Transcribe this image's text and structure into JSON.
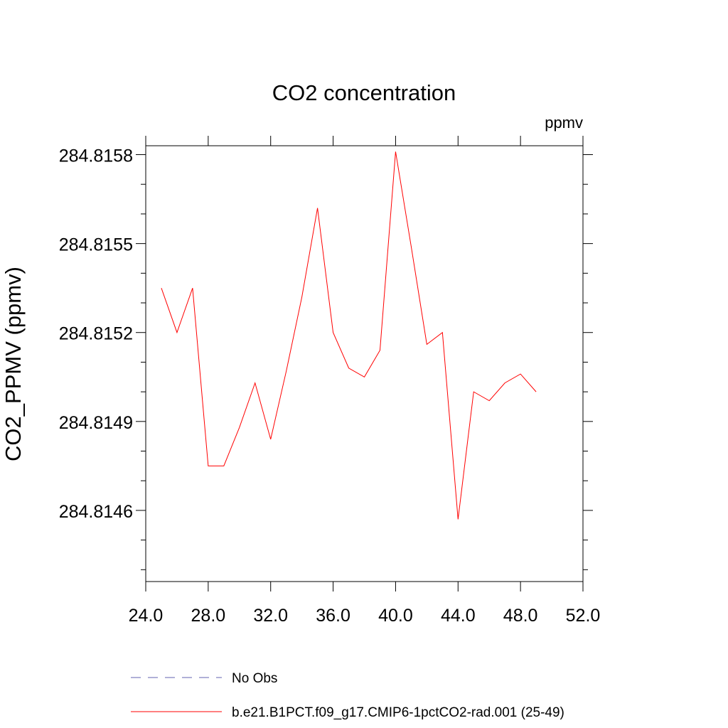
{
  "chart_data": {
    "type": "line",
    "title": "CO2 concentration",
    "units_label": "ppmv",
    "xlabel": "",
    "ylabel": "CO2_PPMV  (ppmv)",
    "xlim": [
      24.0,
      52.0
    ],
    "ylim": [
      284.81436,
      284.81583
    ],
    "x_ticks": [
      24.0,
      28.0,
      32.0,
      36.0,
      40.0,
      44.0,
      48.0,
      52.0
    ],
    "x_tick_labels": [
      "24.0",
      "28.0",
      "32.0",
      "36.0",
      "40.0",
      "44.0",
      "48.0",
      "52.0"
    ],
    "y_ticks": [
      284.8146,
      284.8149,
      284.8152,
      284.8155,
      284.8158
    ],
    "y_tick_labels": [
      "284.8146",
      "284.8149",
      "284.8152",
      "284.8155",
      "284.8158"
    ],
    "grid": false,
    "legend_position": "bottom",
    "series": [
      {
        "name": "b.e21.B1PCT.f09_g17.CMIP6-1pctCO2-rad.001 (25-49)",
        "color": "#ff0000",
        "style": "solid",
        "x": [
          25,
          26,
          27,
          28,
          29,
          30,
          31,
          32,
          33,
          34,
          35,
          36,
          37,
          38,
          39,
          40,
          41,
          42,
          43,
          44,
          45,
          46,
          47,
          48,
          49
        ],
        "y": [
          284.81535,
          284.8152,
          284.81535,
          284.81475,
          284.81475,
          284.81488,
          284.81503,
          284.81484,
          284.81507,
          284.81532,
          284.81562,
          284.8152,
          284.81508,
          284.81505,
          284.81514,
          284.81581,
          284.81549,
          284.81516,
          284.8152,
          284.81457,
          284.815,
          284.81497,
          284.81503,
          284.81506,
          284.815
        ]
      }
    ],
    "legend": [
      {
        "label": "No Obs",
        "color": "#8080c0",
        "style": "dashed"
      },
      {
        "label": "b.e21.B1PCT.f09_g17.CMIP6-1pctCO2-rad.001 (25-49)",
        "color": "#ff0000",
        "style": "solid"
      }
    ]
  }
}
